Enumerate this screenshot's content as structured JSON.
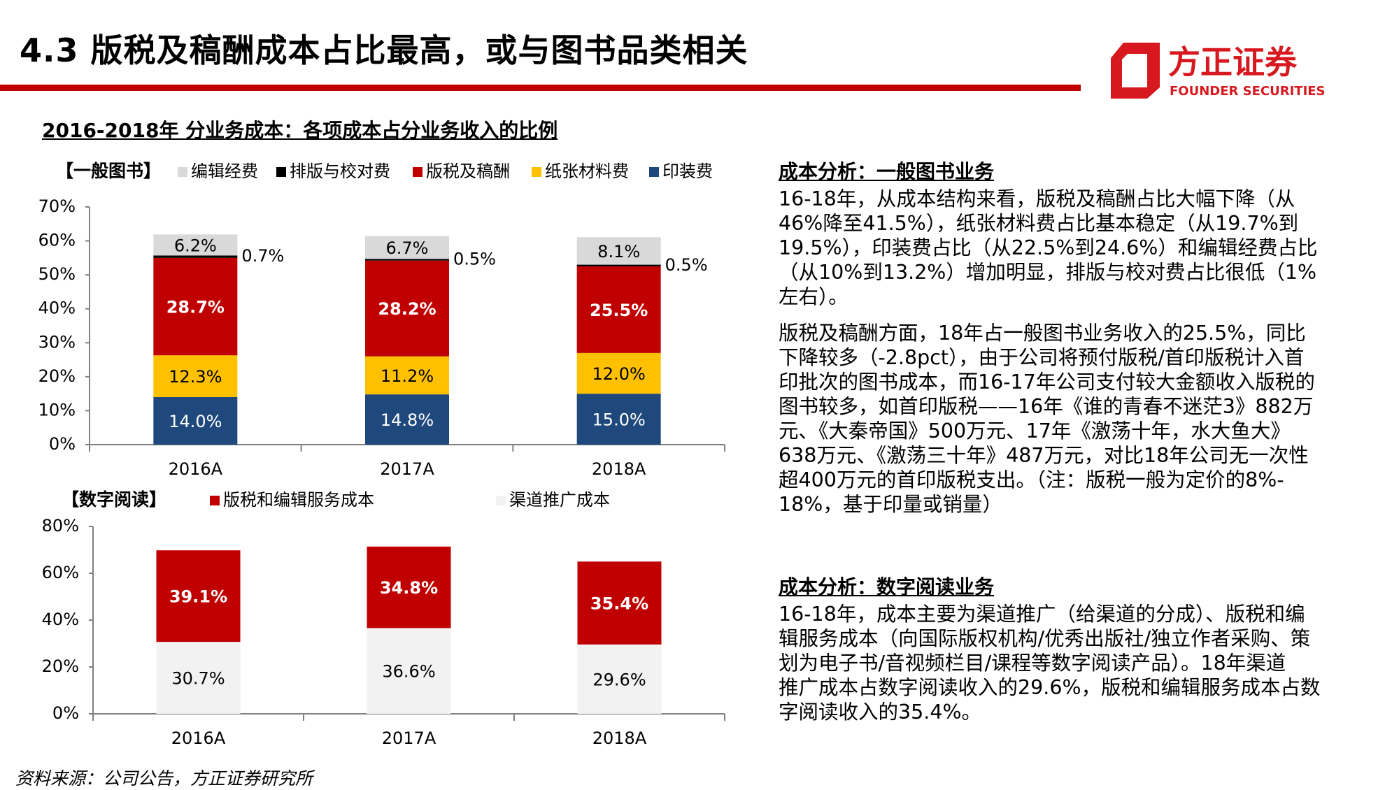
{
  "header": {
    "title": "4.3 版税及稿酬成本占比最高，或与图书品类相关",
    "logo": {
      "cn": "方正证券",
      "en": "FOUNDER SECURITIES",
      "color": "#D7191F"
    },
    "accent_color": "#C00000"
  },
  "subtitle": "2016-2018年 分业务成本：各项成本占分业务收入的比例",
  "chart_data": [
    {
      "type": "bar",
      "stacked": true,
      "section_label": "【一般图书】",
      "categories": [
        "2016A",
        "2017A",
        "2018A"
      ],
      "ylim": [
        0,
        70
      ],
      "yticks": [
        "0%",
        "10%",
        "20%",
        "30%",
        "40%",
        "50%",
        "60%",
        "70%"
      ],
      "legend_position": "top",
      "series": [
        {
          "name": "印装费",
          "values": [
            14.0,
            14.8,
            15.0
          ],
          "labels": [
            "14.0%",
            "14.8%",
            "15.0%"
          ],
          "color": "#1F497D",
          "label_color": "#FFFFFF",
          "bold": false
        },
        {
          "name": "纸张材料费",
          "values": [
            12.3,
            11.2,
            12.0
          ],
          "labels": [
            "12.3%",
            "11.2%",
            "12.0%"
          ],
          "color": "#FFC000",
          "label_color": "#000000",
          "bold": false
        },
        {
          "name": "版税及稿酬",
          "values": [
            28.7,
            28.2,
            25.5
          ],
          "labels": [
            "28.7%",
            "28.2%",
            "25.5%"
          ],
          "color": "#C00000",
          "label_color": "#FFFFFF",
          "bold": true
        },
        {
          "name": "排版与校对费",
          "values": [
            0.7,
            0.5,
            0.5
          ],
          "labels": [
            "0.7%",
            "0.5%",
            "0.5%"
          ],
          "color": "#000000",
          "label_color": "#000000",
          "bold": false
        },
        {
          "name": "编辑经费",
          "values": [
            6.2,
            6.7,
            8.1
          ],
          "labels": [
            "6.2%",
            "6.7%",
            "8.1%"
          ],
          "color": "#D9D9D9",
          "label_color": "#000000",
          "bold": false
        }
      ],
      "legend_order": [
        4,
        3,
        2,
        1,
        0
      ]
    },
    {
      "type": "bar",
      "stacked": true,
      "section_label": "【数字阅读】",
      "categories": [
        "2016A",
        "2017A",
        "2018A"
      ],
      "ylim": [
        0,
        80
      ],
      "yticks": [
        "0%",
        "20%",
        "40%",
        "60%",
        "80%"
      ],
      "legend_position": "top",
      "series": [
        {
          "name": "渠道推广成本",
          "values": [
            30.7,
            36.6,
            29.6
          ],
          "labels": [
            "30.7%",
            "36.6%",
            "29.6%"
          ],
          "color": "#F2F2F2",
          "label_color": "#000000",
          "bold": false
        },
        {
          "name": "版税和编辑服务成本",
          "values": [
            39.1,
            34.8,
            35.4
          ],
          "labels": [
            "39.1%",
            "34.8%",
            "35.4%"
          ],
          "color": "#C00000",
          "label_color": "#FFFFFF",
          "bold": true
        }
      ],
      "legend_order": [
        1,
        0
      ]
    }
  ],
  "analysis": {
    "general": {
      "heading": "成本分析：一般图书业务",
      "p1": [
        "16-18年，从成本结构来看，版税及稿酬占比大幅下降（从",
        "46%降至41.5%），纸张材料费占比基本稳定（从19.7%到",
        "19.5%），印装费占比（从22.5%到24.6%）和编辑经费占比",
        "（从10%到13.2%）增加明显，排版与校对费占比很低（1%",
        "左右）。"
      ],
      "p2": [
        "版税及稿酬方面，18年占一般图书业务收入的25.5%，同比",
        "下降较多（-2.8pct），由于公司将预付版税/首印版税计入首",
        "印批次的图书成本，而16-17年公司支付较大金额收入版税的",
        "图书较多，如首印版税——16年《谁的青春不迷茫3》882万",
        "元、《大秦帝国》500万元、17年《激荡十年，水大鱼大》",
        "638万元、《激荡三十年》487万元，对比18年公司无一次性",
        "超400万元的首印版税支出。（注：版税一般为定价的8%-",
        "18%，基于印量或销量）"
      ]
    },
    "digital": {
      "heading": "成本分析：数字阅读业务",
      "p1": [
        "16-18年，成本主要为渠道推广（给渠道的分成）、版税和编",
        "辑服务成本（向国际版权机构/优秀出版社/独立作者采购、策",
        "划为电子书/音视频栏目/课程等数字阅读产品）。18年渠道",
        "推广成本占数字阅读收入的29.6%，版税和编辑服务成本占数",
        "字阅读收入的35.4%。"
      ]
    }
  },
  "source": "资料来源：公司公告，方正证券研究所"
}
